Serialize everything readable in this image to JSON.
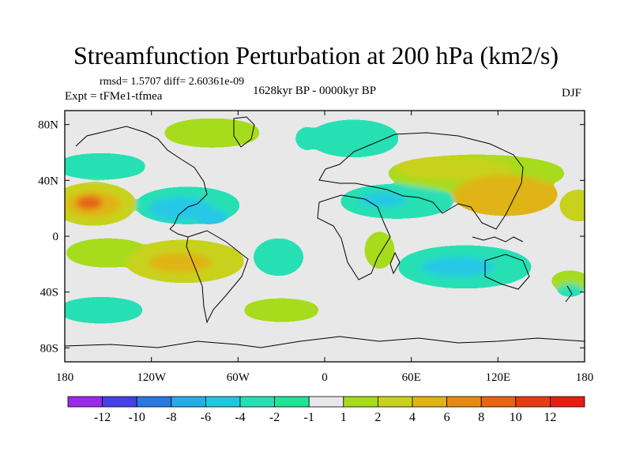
{
  "chart_data": {
    "type": "heatmap",
    "title": "Streamfunction Perturbation at 200 hPa (km2/s)",
    "stats_line": "rmsd= 1.5707 diff= 2.60361e-09",
    "experiment": "Expt = tFMe1-tfmea",
    "period": "1628kyr BP - 0000kyr BP",
    "season": "DJF",
    "xlim": [
      -180,
      180
    ],
    "ylim": [
      -90,
      90
    ],
    "x_ticks": [
      {
        "value": -180,
        "label": "180"
      },
      {
        "value": -120,
        "label": "120W"
      },
      {
        "value": -60,
        "label": "60W"
      },
      {
        "value": 0,
        "label": "0"
      },
      {
        "value": 60,
        "label": "60E"
      },
      {
        "value": 120,
        "label": "120E"
      },
      {
        "value": 180,
        "label": "180"
      }
    ],
    "y_ticks": [
      {
        "value": 80,
        "label": "80N"
      },
      {
        "value": 40,
        "label": "40N"
      },
      {
        "value": 0,
        "label": "0"
      },
      {
        "value": -40,
        "label": "40S"
      },
      {
        "value": -80,
        "label": "80S"
      }
    ],
    "colorbar": {
      "bins": [
        {
          "color": "#9b2ae6"
        },
        {
          "color": "#4640e6"
        },
        {
          "color": "#2a78e0"
        },
        {
          "color": "#25aee6"
        },
        {
          "color": "#1ec8e0"
        },
        {
          "color": "#26e0b4"
        },
        {
          "color": "#1ee696"
        },
        {
          "color": "#e8e8e8"
        },
        {
          "color": "#a6dc1c"
        },
        {
          "color": "#c8d21c"
        },
        {
          "color": "#e0b414"
        },
        {
          "color": "#e68c14"
        },
        {
          "color": "#e66414"
        },
        {
          "color": "#e63c14"
        },
        {
          "color": "#e61e14"
        }
      ],
      "labels": [
        "-12",
        "-10",
        "-8",
        "-6",
        "-4",
        "-2",
        "-1",
        "1",
        "2",
        "4",
        "6",
        "8",
        "10",
        "12"
      ]
    },
    "anomalies": [
      {
        "lon": -78,
        "lat": 74,
        "rlon": 32,
        "rlat": 9,
        "level": 1
      },
      {
        "lon": 20,
        "lat": 70,
        "rlon": 30,
        "rlat": 12,
        "level": -1
      },
      {
        "lon": -12,
        "lat": 70,
        "rlon": 7,
        "rlat": 7,
        "level": -1
      },
      {
        "lon": -155,
        "lat": 50,
        "rlon": 30,
        "rlat": 8,
        "level": -1
      },
      {
        "lon": 105,
        "lat": 45,
        "rlon": 60,
        "rlat": 12,
        "level": 1
      },
      {
        "lon": 90,
        "lat": 48,
        "rlon": 40,
        "rlat": 8,
        "level": 2
      },
      {
        "lon": 125,
        "lat": 30,
        "rlon": 35,
        "rlat": 14,
        "level": 4
      },
      {
        "lon": 176,
        "lat": 22,
        "rlon": 12,
        "rlat": 10,
        "level": 2
      },
      {
        "lon": -160,
        "lat": 23,
        "rlon": 28,
        "rlat": 14,
        "level": 2
      },
      {
        "lon": -160,
        "lat": 23,
        "rlon": 19,
        "rlat": 9,
        "level": 4
      },
      {
        "lon": -163,
        "lat": 24,
        "rlon": 9,
        "rlat": 5,
        "level": 6
      },
      {
        "lon": -95,
        "lat": 22,
        "rlon": 35,
        "rlat": 12,
        "level": -1
      },
      {
        "lon": -100,
        "lat": 20,
        "rlon": 22,
        "rlat": 8,
        "level": -2
      },
      {
        "lon": -80,
        "lat": 15,
        "rlon": 12,
        "rlat": 5,
        "level": -2
      },
      {
        "lon": 50,
        "lat": 25,
        "rlon": 38,
        "rlat": 11,
        "level": -1
      },
      {
        "lon": 40,
        "lat": 26,
        "rlon": 16,
        "rlat": 5,
        "level": -2
      },
      {
        "lon": 38,
        "lat": -10,
        "rlon": 9,
        "rlat": 12,
        "level": 1
      },
      {
        "lon": -150,
        "lat": -12,
        "rlon": 28,
        "rlat": 9,
        "level": 1
      },
      {
        "lon": -97,
        "lat": -18,
        "rlon": 40,
        "rlat": 14,
        "level": 2
      },
      {
        "lon": -100,
        "lat": -19,
        "rlon": 22,
        "rlat": 7,
        "level": 4
      },
      {
        "lon": -32,
        "lat": -15,
        "rlon": 16,
        "rlat": 12,
        "level": -1
      },
      {
        "lon": 97,
        "lat": -22,
        "rlon": 45,
        "rlat": 14,
        "level": -1
      },
      {
        "lon": 92,
        "lat": -22,
        "rlon": 25,
        "rlat": 7,
        "level": -2
      },
      {
        "lon": 170,
        "lat": -32,
        "rlon": 12,
        "rlat": 6,
        "level": 1
      },
      {
        "lon": 170,
        "lat": -38,
        "rlon": 8,
        "rlat": 4,
        "level": -1
      },
      {
        "lon": -155,
        "lat": -53,
        "rlon": 28,
        "rlat": 8,
        "level": -1
      },
      {
        "lon": -30,
        "lat": -53,
        "rlon": 25,
        "rlat": 7,
        "level": 1
      }
    ]
  }
}
